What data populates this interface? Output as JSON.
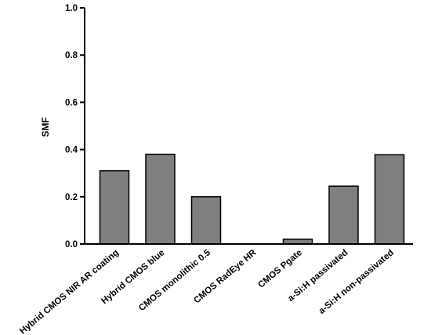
{
  "chart_data": {
    "type": "bar",
    "title": "",
    "xlabel": "",
    "ylabel": "SMF",
    "ylim": [
      0,
      1.0
    ],
    "yticks": [
      "0.0",
      "0.2",
      "0.4",
      "0.6",
      "0.8",
      "1.0"
    ],
    "grid": false,
    "bar_color": "#7f7f7f",
    "categories": [
      "Hybrid CMOS NIR AR coating",
      "Hybrid CMOS blue",
      "CMOS monolithic 0.5",
      "CMOS RadEye HR",
      "CMOS Pgate",
      "a-Si:H passivated",
      "a-Si:H non-passivated"
    ],
    "values": [
      0.31,
      0.38,
      0.2,
      0.0,
      0.02,
      0.245,
      0.378
    ]
  }
}
